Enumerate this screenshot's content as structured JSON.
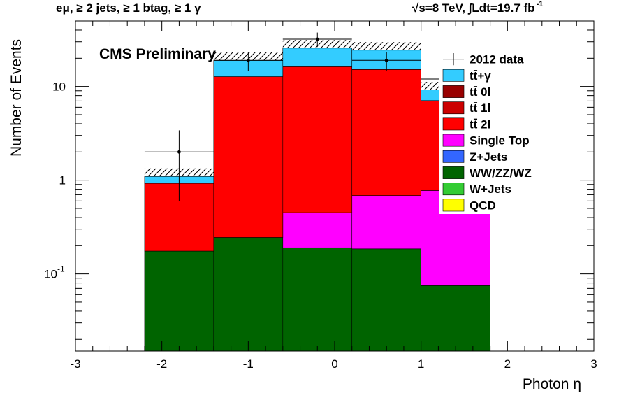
{
  "header": {
    "left": "eμ, ≥ 2 jets, ≥ 1 btag, ≥ 1 γ",
    "right": "√s=8 TeV,  ∫Ldt=19.7 fb",
    "right_sup": "-1"
  },
  "chart_data": {
    "type": "bar",
    "stacked": true,
    "yscale": "log",
    "xlabel": "Photon η",
    "ylabel": "Number of Events",
    "annotation": "CMS Preliminary",
    "xlim": [
      -3,
      3
    ],
    "ylim": [
      0.015,
      50
    ],
    "x_ticks": [
      "-3",
      "-2",
      "-1",
      "0",
      "1",
      "2",
      "3"
    ],
    "y_ticks": [
      {
        "value": 0.1,
        "base": "10",
        "exp": "-1"
      },
      {
        "value": 1,
        "base": "1",
        "exp": ""
      },
      {
        "value": 10,
        "base": "10",
        "exp": ""
      }
    ],
    "bin_edges": [
      -2.2,
      -1.4,
      -0.6,
      0.2,
      1.0,
      1.8
    ],
    "legend_position": "top-right",
    "series": [
      {
        "name": "WW/ZZ/WZ",
        "color": "#006400",
        "values": [
          0.175,
          0.245,
          0.19,
          0.185,
          0.075
        ]
      },
      {
        "name": "Single Top",
        "color": "#ff00ff",
        "values": [
          0,
          0,
          0.26,
          0.5,
          0.7
        ]
      },
      {
        "name": "tt̄ 2l",
        "color": "#ff0000",
        "values": [
          0.75,
          12.5,
          15.8,
          14.5,
          6.2
        ]
      },
      {
        "name": "tt̄ 1l",
        "color": "#cc0000",
        "values": [
          0,
          0,
          0,
          0.2,
          0.1
        ]
      },
      {
        "name": "tt̄+γ",
        "color": "#33ccff",
        "values": [
          0.17,
          6.2,
          9.4,
          9.0,
          2.1
        ]
      }
    ],
    "data": {
      "name": "2012 data",
      "x": [
        -1.8,
        -1.0,
        -0.2,
        0.6,
        1.4
      ],
      "y": [
        2,
        19,
        32,
        19,
        12
      ],
      "yerr_low": [
        1.4,
        4.3,
        5.6,
        4.3,
        3.4
      ],
      "yerr_high": [
        1.4,
        4.3,
        5.6,
        4.3,
        3.4
      ]
    },
    "legend": [
      {
        "label": "2012 data",
        "kind": "marker",
        "color": "#000000"
      },
      {
        "label": "tt̄+γ",
        "kind": "fill",
        "color": "#33ccff"
      },
      {
        "label": "tt̄ 0l",
        "kind": "fill",
        "color": "#990000"
      },
      {
        "label": "tt̄ 1l",
        "kind": "fill",
        "color": "#cc0000"
      },
      {
        "label": "tt̄ 2l",
        "kind": "fill",
        "color": "#ff0000"
      },
      {
        "label": "Single Top",
        "kind": "fill",
        "color": "#ff00ff"
      },
      {
        "label": "Z+Jets",
        "kind": "fill",
        "color": "#3366ff"
      },
      {
        "label": "WW/ZZ/WZ",
        "kind": "fill",
        "color": "#006400"
      },
      {
        "label": "W+Jets",
        "kind": "fill",
        "color": "#33cc33"
      },
      {
        "label": "QCD",
        "kind": "fill",
        "color": "#ffff00"
      }
    ]
  }
}
